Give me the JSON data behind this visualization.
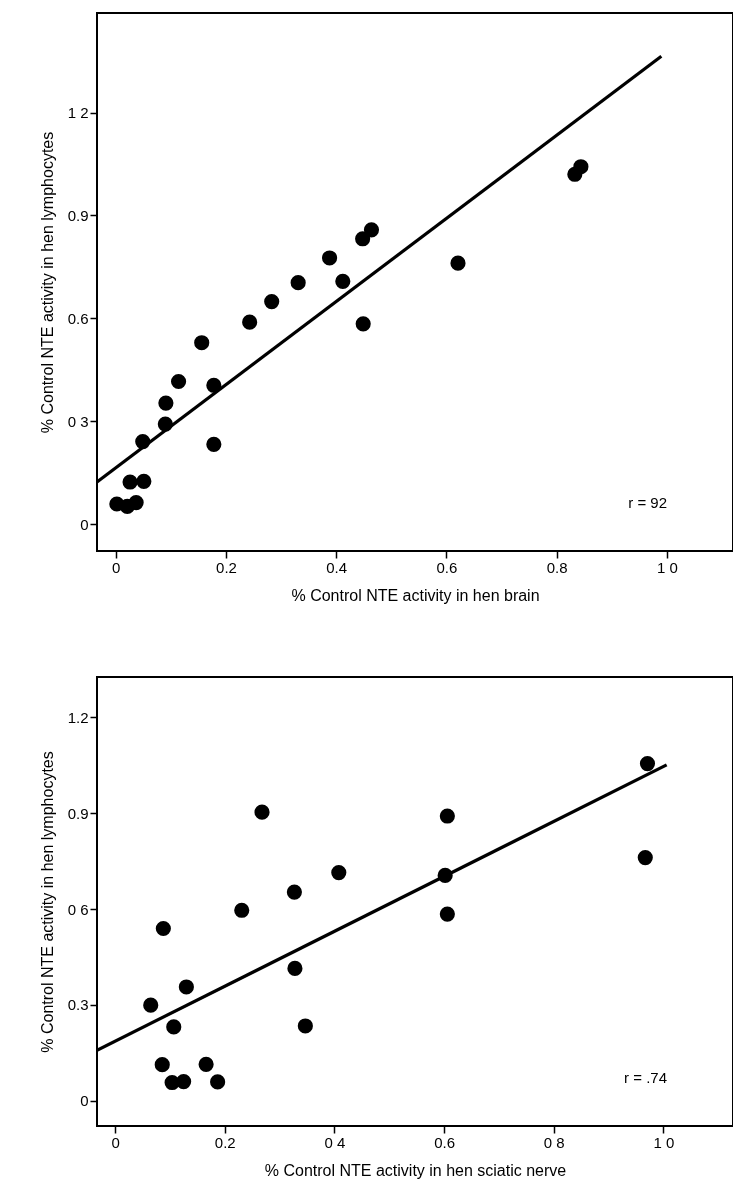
{
  "chart_data": [
    {
      "type": "scatter",
      "xlabel": "% Control NTE activity in hen brain",
      "ylabel": "% Control NTE activity in hen lymphocytes",
      "annotations": [
        "r = 92"
      ],
      "grid": false,
      "xlim": [
        -0.034,
        1.12
      ],
      "ylim": [
        -0.078,
        1.49
      ],
      "xticks": [
        0,
        0.2,
        0.4,
        0.6,
        0.8,
        {
          "value": 1,
          "label": "1 0"
        }
      ],
      "yticks": [
        0,
        {
          "value": 0.3,
          "label": "0 3"
        },
        0.6,
        0.9,
        {
          "value": 1.2,
          "label": "1 2"
        }
      ],
      "series": [
        {
          "marker": "circle",
          "color": "#000000",
          "x": [
            0.002,
            0.021,
            0.037,
            0.026,
            0.051,
            0.049,
            0.09,
            0.091,
            0.114,
            0.156,
            0.178,
            0.178,
            0.243,
            0.283,
            0.331,
            0.388,
            0.412,
            0.448,
            0.464,
            0.449,
            0.621,
            0.833,
            0.844
          ],
          "values": [
            0.059,
            0.052,
            0.063,
            0.123,
            0.125,
            0.241,
            0.292,
            0.353,
            0.416,
            0.529,
            0.405,
            0.233,
            0.589,
            0.649,
            0.704,
            0.776,
            0.708,
            0.832,
            0.858,
            0.584,
            0.761,
            1.02,
            1.042
          ]
        },
        {
          "type": "line",
          "color": "#000000",
          "x": [
            -0.034,
            0.99
          ],
          "values": [
            0.123,
            1.364
          ]
        }
      ]
    },
    {
      "type": "scatter",
      "xlabel": "% Control NTE activity in hen sciatic nerve",
      "ylabel": "% Control NTE activity in hen lymphocytes",
      "annotations": [
        "r = .74"
      ],
      "grid": false,
      "xlim": [
        -0.033,
        1.127
      ],
      "ylim": [
        -0.079,
        1.326
      ],
      "xticks": [
        0,
        0.2,
        {
          "value": 0.4,
          "label": "0 4"
        },
        0.6,
        {
          "value": 0.8,
          "label": "0 8"
        },
        {
          "value": 1,
          "label": "1 0"
        }
      ],
      "yticks": [
        0,
        0.3,
        {
          "value": 0.6,
          "label": "0 6"
        },
        0.9,
        1.2
      ],
      "series": [
        {
          "marker": "circle",
          "color": "#000000",
          "x": [
            0.065,
            0.088,
            0.086,
            0.104,
            0.125,
            0.107,
            0.13,
            0.166,
            0.187,
            0.231,
            0.268,
            0.327,
            0.328,
            0.347,
            0.408,
            0.602,
            0.606,
            0.606,
            0.967,
            0.971
          ],
          "values": [
            0.299,
            0.539,
            0.113,
            0.057,
            0.06,
            0.231,
            0.356,
            0.114,
            0.059,
            0.596,
            0.903,
            0.653,
            0.414,
            0.234,
            0.714,
            0.705,
            0.584,
            0.891,
            0.761,
            1.055
          ]
        },
        {
          "type": "line",
          "color": "#000000",
          "x": [
            -0.033,
            1.006
          ],
          "values": [
            0.158,
            1.051
          ]
        }
      ]
    }
  ]
}
